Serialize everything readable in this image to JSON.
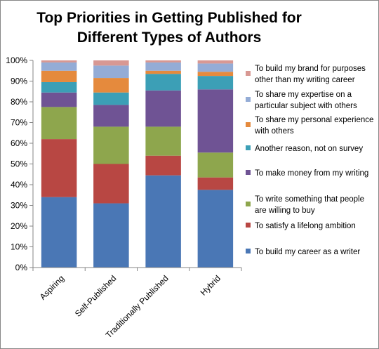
{
  "chart_data": {
    "type": "bar",
    "stacked": true,
    "percent": true,
    "title_lines": [
      "Top Priorities in Getting Published for",
      "Different Types of Authors"
    ],
    "xlabel": "",
    "ylabel": "",
    "ylim": [
      0,
      100
    ],
    "yticks": [
      "0%",
      "10%",
      "20%",
      "30%",
      "40%",
      "50%",
      "60%",
      "70%",
      "80%",
      "90%",
      "100%"
    ],
    "grid": false,
    "legend_position": "right",
    "categories": [
      "Aspiring",
      "Self-Published",
      "Traditionally Published",
      "Hybrid"
    ],
    "series": [
      {
        "name": "To build my career as a writer",
        "color": "#4a77b5",
        "values": [
          34,
          31,
          44.5,
          37.5
        ]
      },
      {
        "name": "To satisfy a lifelong ambition",
        "color": "#b84743",
        "values": [
          28,
          19,
          9.5,
          6
        ]
      },
      {
        "name": "To write something that people are willing to buy",
        "color": "#8ea64d",
        "values": [
          15.5,
          18,
          14,
          12
        ]
      },
      {
        "name": "To make money from my writing",
        "color": "#6f5394",
        "values": [
          7,
          10.5,
          17.5,
          30.5
        ]
      },
      {
        "name": "Another reason, not on survey",
        "color": "#3c9fb6",
        "values": [
          5,
          6,
          8,
          6.5
        ]
      },
      {
        "name": "To share my personal experience with others",
        "color": "#e58a3d",
        "values": [
          5.5,
          7,
          1.5,
          2
        ]
      },
      {
        "name": "To share my expertise on a particular subject with others",
        "color": "#94acd6",
        "values": [
          4,
          6,
          4,
          4
        ]
      },
      {
        "name": "To build my brand for purposes other than my writing career",
        "color": "#d89893",
        "values": [
          1,
          2.5,
          1,
          1.5
        ]
      }
    ],
    "legend": [
      {
        "lines": [
          "To build my brand for purposes",
          "other than my writing career"
        ],
        "color": "#d89893"
      },
      {
        "lines": [
          "To share my expertise on a",
          "particular subject with others"
        ],
        "color": "#94acd6"
      },
      {
        "lines": [
          "To share my personal experience",
          "with others"
        ],
        "color": "#e58a3d"
      },
      {
        "lines": [
          "Another reason, not on survey"
        ],
        "color": "#3c9fb6"
      },
      {
        "lines": [
          "To make money from my writing"
        ],
        "color": "#6f5394"
      },
      {
        "lines": [
          "To write something that people",
          "are willing to buy"
        ],
        "color": "#8ea64d"
      },
      {
        "lines": [
          "To satisfy a lifelong ambition"
        ],
        "color": "#b84743"
      },
      {
        "lines": [
          "To build my career as a writer"
        ],
        "color": "#4a77b5"
      }
    ]
  }
}
